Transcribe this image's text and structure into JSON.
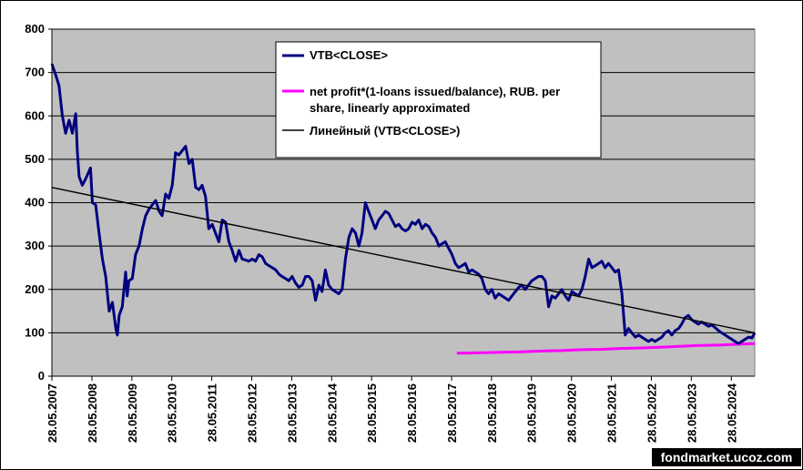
{
  "chart_data": {
    "type": "line",
    "xlabel": "",
    "ylabel": "",
    "ylim": [
      0,
      800
    ],
    "yticks": [
      0,
      100,
      200,
      300,
      400,
      500,
      600,
      700,
      800
    ],
    "xlim": [
      "28.05.2007",
      "28.12.2024"
    ],
    "xticks": [
      "28.05.2007",
      "28.05.2008",
      "28.05.2009",
      "28.05.2010",
      "28.05.2011",
      "28.05.2012",
      "28.05.2013",
      "28.05.2014",
      "28.05.2015",
      "28.05.2016",
      "28.05.2017",
      "28.05.2018",
      "28.05.2019",
      "28.05.2020",
      "28.05.2021",
      "28.05.2022",
      "28.05.2023",
      "28.05.2024"
    ],
    "grid": "horizontal",
    "plot_background": "#c0c0c0",
    "legend_position": "top-center",
    "series": [
      {
        "name": "VTB<CLOSE>",
        "color": "#000080",
        "points": [
          [
            "28.05.2007",
            720
          ],
          [
            "01.07.2007",
            695
          ],
          [
            "01.08.2007",
            670
          ],
          [
            "01.09.2007",
            600
          ],
          [
            "01.10.2007",
            560
          ],
          [
            "01.11.2007",
            590
          ],
          [
            "01.12.2007",
            560
          ],
          [
            "01.01.2008",
            605
          ],
          [
            "15.01.2008",
            520
          ],
          [
            "01.02.2008",
            460
          ],
          [
            "01.03.2008",
            440
          ],
          [
            "01.04.2008",
            455
          ],
          [
            "15.05.2008",
            480
          ],
          [
            "01.06.2008",
            400
          ],
          [
            "01.07.2008",
            395
          ],
          [
            "01.08.2008",
            330
          ],
          [
            "01.09.2008",
            270
          ],
          [
            "01.10.2008",
            230
          ],
          [
            "01.11.2008",
            150
          ],
          [
            "01.12.2008",
            170
          ],
          [
            "01.01.2009",
            110
          ],
          [
            "15.01.2009",
            95
          ],
          [
            "01.02.2009",
            140
          ],
          [
            "01.03.2009",
            160
          ],
          [
            "01.04.2009",
            240
          ],
          [
            "15.04.2009",
            185
          ],
          [
            "01.05.2009",
            220
          ],
          [
            "01.06.2009",
            225
          ],
          [
            "01.07.2009",
            280
          ],
          [
            "01.08.2009",
            300
          ],
          [
            "01.09.2009",
            340
          ],
          [
            "01.10.2009",
            370
          ],
          [
            "01.11.2009",
            385
          ],
          [
            "01.12.2009",
            395
          ],
          [
            "01.01.2010",
            405
          ],
          [
            "01.02.2010",
            380
          ],
          [
            "01.03.2010",
            370
          ],
          [
            "01.04.2010",
            420
          ],
          [
            "01.05.2010",
            410
          ],
          [
            "01.06.2010",
            440
          ],
          [
            "01.07.2010",
            515
          ],
          [
            "01.08.2010",
            510
          ],
          [
            "01.09.2010",
            520
          ],
          [
            "01.10.2010",
            530
          ],
          [
            "01.11.2010",
            490
          ],
          [
            "01.12.2010",
            500
          ],
          [
            "01.01.2011",
            435
          ],
          [
            "01.02.2011",
            430
          ],
          [
            "01.03.2011",
            440
          ],
          [
            "01.04.2011",
            415
          ],
          [
            "01.05.2011",
            340
          ],
          [
            "01.06.2011",
            350
          ],
          [
            "01.07.2011",
            330
          ],
          [
            "01.08.2011",
            310
          ],
          [
            "01.09.2011",
            360
          ],
          [
            "01.10.2011",
            355
          ],
          [
            "01.11.2011",
            310
          ],
          [
            "01.12.2011",
            290
          ],
          [
            "01.01.2012",
            265
          ],
          [
            "01.02.2012",
            290
          ],
          [
            "01.03.2012",
            270
          ],
          [
            "01.04.2012",
            268
          ],
          [
            "01.05.2012",
            265
          ],
          [
            "01.06.2012",
            270
          ],
          [
            "01.07.2012",
            265
          ],
          [
            "01.08.2012",
            280
          ],
          [
            "01.09.2012",
            275
          ],
          [
            "01.10.2012",
            260
          ],
          [
            "01.11.2012",
            255
          ],
          [
            "01.12.2012",
            250
          ],
          [
            "01.01.2013",
            245
          ],
          [
            "01.02.2013",
            235
          ],
          [
            "01.03.2013",
            230
          ],
          [
            "01.04.2013",
            225
          ],
          [
            "01.05.2013",
            220
          ],
          [
            "01.06.2013",
            230
          ],
          [
            "01.07.2013",
            215
          ],
          [
            "01.08.2013",
            205
          ],
          [
            "01.09.2013",
            210
          ],
          [
            "01.10.2013",
            230
          ],
          [
            "01.11.2013",
            230
          ],
          [
            "01.12.2013",
            220
          ],
          [
            "01.01.2014",
            175
          ],
          [
            "01.02.2014",
            210
          ],
          [
            "01.03.2014",
            195
          ],
          [
            "01.04.2014",
            245
          ],
          [
            "01.05.2014",
            210
          ],
          [
            "01.06.2014",
            200
          ],
          [
            "01.07.2014",
            195
          ],
          [
            "01.08.2014",
            190
          ],
          [
            "01.09.2014",
            200
          ],
          [
            "01.10.2014",
            270
          ],
          [
            "01.11.2014",
            320
          ],
          [
            "01.12.2014",
            340
          ],
          [
            "01.01.2015",
            330
          ],
          [
            "01.02.2015",
            300
          ],
          [
            "01.03.2015",
            330
          ],
          [
            "01.04.2015",
            400
          ],
          [
            "01.05.2015",
            380
          ],
          [
            "01.06.2015",
            360
          ],
          [
            "01.07.2015",
            340
          ],
          [
            "01.08.2015",
            360
          ],
          [
            "01.09.2015",
            370
          ],
          [
            "01.10.2015",
            380
          ],
          [
            "01.11.2015",
            375
          ],
          [
            "01.12.2015",
            360
          ],
          [
            "01.01.2016",
            345
          ],
          [
            "01.02.2016",
            350
          ],
          [
            "01.03.2016",
            340
          ],
          [
            "01.04.2016",
            335
          ],
          [
            "01.05.2016",
            340
          ],
          [
            "01.06.2016",
            355
          ],
          [
            "01.07.2016",
            350
          ],
          [
            "01.08.2016",
            360
          ],
          [
            "01.09.2016",
            340
          ],
          [
            "01.10.2016",
            350
          ],
          [
            "01.11.2016",
            345
          ],
          [
            "01.12.2016",
            330
          ],
          [
            "01.01.2017",
            320
          ],
          [
            "01.02.2017",
            300
          ],
          [
            "01.03.2017",
            305
          ],
          [
            "01.04.2017",
            310
          ],
          [
            "01.05.2017",
            295
          ],
          [
            "01.06.2017",
            280
          ],
          [
            "01.07.2017",
            260
          ],
          [
            "01.08.2017",
            250
          ],
          [
            "01.09.2017",
            255
          ],
          [
            "01.10.2017",
            260
          ],
          [
            "01.11.2017",
            240
          ],
          [
            "01.12.2017",
            245
          ],
          [
            "01.01.2018",
            240
          ],
          [
            "01.02.2018",
            235
          ],
          [
            "01.03.2018",
            225
          ],
          [
            "01.04.2018",
            200
          ],
          [
            "01.05.2018",
            190
          ],
          [
            "01.06.2018",
            200
          ],
          [
            "01.07.2018",
            180
          ],
          [
            "01.08.2018",
            190
          ],
          [
            "01.09.2018",
            185
          ],
          [
            "01.10.2018",
            180
          ],
          [
            "01.11.2018",
            175
          ],
          [
            "01.12.2018",
            185
          ],
          [
            "01.01.2019",
            195
          ],
          [
            "01.02.2019",
            205
          ],
          [
            "01.03.2019",
            210
          ],
          [
            "01.04.2019",
            200
          ],
          [
            "01.05.2019",
            210
          ],
          [
            "01.06.2019",
            220
          ],
          [
            "01.07.2019",
            225
          ],
          [
            "01.08.2019",
            230
          ],
          [
            "01.09.2019",
            230
          ],
          [
            "01.10.2019",
            220
          ],
          [
            "01.11.2019",
            160
          ],
          [
            "01.12.2019",
            185
          ],
          [
            "01.01.2020",
            180
          ],
          [
            "01.02.2020",
            190
          ],
          [
            "01.03.2020",
            200
          ],
          [
            "01.04.2020",
            185
          ],
          [
            "01.05.2020",
            175
          ],
          [
            "01.06.2020",
            195
          ],
          [
            "01.07.2020",
            190
          ],
          [
            "01.08.2020",
            185
          ],
          [
            "01.09.2020",
            200
          ],
          [
            "01.10.2020",
            230
          ],
          [
            "01.11.2020",
            270
          ],
          [
            "01.12.2020",
            250
          ],
          [
            "01.01.2021",
            255
          ],
          [
            "01.02.2021",
            260
          ],
          [
            "01.03.2021",
            265
          ],
          [
            "01.04.2021",
            250
          ],
          [
            "01.05.2021",
            260
          ],
          [
            "01.06.2021",
            250
          ],
          [
            "01.07.2021",
            240
          ],
          [
            "01.08.2021",
            245
          ],
          [
            "01.09.2021",
            190
          ],
          [
            "01.10.2021",
            95
          ],
          [
            "01.11.2021",
            110
          ],
          [
            "01.12.2021",
            100
          ],
          [
            "01.01.2022",
            90
          ],
          [
            "01.02.2022",
            95
          ],
          [
            "01.03.2022",
            90
          ],
          [
            "01.04.2022",
            85
          ],
          [
            "01.05.2022",
            80
          ],
          [
            "01.06.2022",
            85
          ],
          [
            "01.07.2022",
            80
          ],
          [
            "01.08.2022",
            85
          ],
          [
            "01.09.2022",
            90
          ],
          [
            "01.10.2022",
            100
          ],
          [
            "01.11.2022",
            105
          ],
          [
            "01.12.2022",
            95
          ],
          [
            "01.01.2023",
            105
          ],
          [
            "01.02.2023",
            110
          ],
          [
            "01.03.2023",
            120
          ],
          [
            "01.04.2023",
            135
          ],
          [
            "01.05.2023",
            140
          ],
          [
            "01.06.2023",
            130
          ],
          [
            "01.07.2023",
            125
          ],
          [
            "01.08.2023",
            120
          ],
          [
            "01.09.2023",
            125
          ],
          [
            "01.10.2023",
            120
          ],
          [
            "01.11.2023",
            115
          ],
          [
            "01.12.2023",
            118
          ],
          [
            "01.01.2024",
            112
          ],
          [
            "01.02.2024",
            105
          ],
          [
            "01.03.2024",
            100
          ],
          [
            "01.04.2024",
            95
          ],
          [
            "01.05.2024",
            90
          ],
          [
            "01.06.2024",
            85
          ],
          [
            "01.07.2024",
            80
          ],
          [
            "01.08.2024",
            75
          ],
          [
            "01.09.2024",
            80
          ],
          [
            "01.10.2024",
            85
          ],
          [
            "01.11.2024",
            90
          ],
          [
            "01.12.2024",
            88
          ],
          [
            "28.12.2024",
            100
          ]
        ]
      },
      {
        "name": "net profit*(1-loans issued/balance), RUB. per share, linearly approximated",
        "color": "#ff00ff",
        "points": [
          [
            "15.07.2017",
            53
          ],
          [
            "01.03.2018",
            54
          ],
          [
            "01.09.2018",
            55
          ],
          [
            "01.03.2019",
            56
          ],
          [
            "01.09.2019",
            58
          ],
          [
            "01.03.2020",
            59
          ],
          [
            "01.09.2020",
            61
          ],
          [
            "01.03.2021",
            62
          ],
          [
            "01.09.2021",
            64
          ],
          [
            "01.03.2022",
            65
          ],
          [
            "01.09.2022",
            67
          ],
          [
            "01.03.2023",
            69
          ],
          [
            "01.09.2023",
            71
          ],
          [
            "01.03.2024",
            72
          ],
          [
            "01.09.2024",
            74
          ],
          [
            "28.12.2024",
            75
          ]
        ]
      },
      {
        "name": "Линейный (VTB<CLOSE>)",
        "color": "#000000",
        "points": [
          [
            "28.05.2007",
            435
          ],
          [
            "28.12.2024",
            100
          ]
        ]
      }
    ]
  },
  "watermark": "fondmarket.ucoz.com"
}
